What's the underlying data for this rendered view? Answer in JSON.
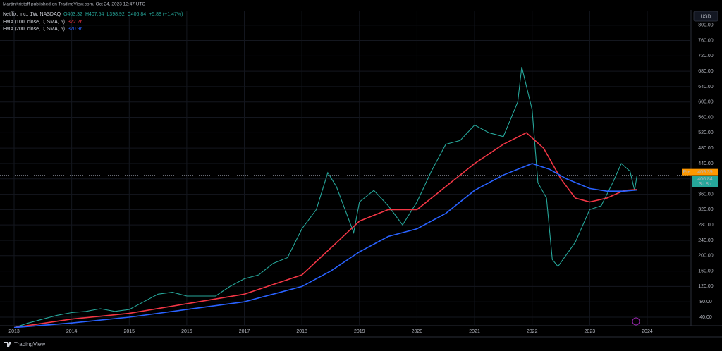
{
  "published": "MartinKristoff published on TradingView.com, Oct 24, 2023 12:47 UTC",
  "currency": "USD",
  "footer": "TradingView",
  "chart_data": {
    "type": "line",
    "symbol": "Netflix, Inc., 1W, NASDAQ",
    "ohlc_texts": [
      "O403.32",
      "H407.54",
      "L398.92",
      "C406.84",
      "+5.88 (+1.47%)"
    ],
    "xlim": [
      2012.755,
      2024.76
    ],
    "xticks": [
      2013,
      2014,
      2015,
      2016,
      2017,
      2018,
      2019,
      2020,
      2021,
      2022,
      2023,
      2024
    ],
    "ylim": [
      18,
      838
    ],
    "yticks": [
      {
        "value": 40,
        "label": "40.00"
      },
      {
        "value": 80,
        "label": "80.00"
      },
      {
        "value": 120,
        "label": "120.00"
      },
      {
        "value": 160,
        "label": "160.00"
      },
      {
        "value": 200,
        "label": "200.00"
      },
      {
        "value": 240,
        "label": "240.00"
      },
      {
        "value": 280,
        "label": "280.00"
      },
      {
        "value": 320,
        "label": "320.00"
      },
      {
        "value": 360,
        "label": "360.00"
      },
      {
        "value": 400,
        "label": "400.00"
      },
      {
        "value": 440,
        "label": "440.00"
      },
      {
        "value": 480,
        "label": "480.00"
      },
      {
        "value": 520,
        "label": "520.00"
      },
      {
        "value": 560,
        "label": "560.00"
      },
      {
        "value": 600,
        "label": "600.00"
      },
      {
        "value": 640,
        "label": "640.00"
      },
      {
        "value": 680,
        "label": "680.00"
      },
      {
        "value": 720,
        "label": "720.00"
      },
      {
        "value": 760,
        "label": "760.00"
      },
      {
        "value": 800,
        "label": "800.00"
      }
    ],
    "grid": true,
    "pre_market": {
      "label": "Pre",
      "value": 409.39
    },
    "last_close": 406.84,
    "countdown": "3d 8h",
    "series": [
      {
        "name": "Price",
        "color": "#26a69a",
        "legend": false,
        "x": [
          2013.0,
          2013.25,
          2013.5,
          2013.75,
          2014.0,
          2014.25,
          2014.5,
          2014.75,
          2015.0,
          2015.25,
          2015.5,
          2015.75,
          2016.0,
          2016.25,
          2016.5,
          2016.75,
          2017.0,
          2017.25,
          2017.5,
          2017.75,
          2018.0,
          2018.25,
          2018.45,
          2018.6,
          2018.75,
          2018.9,
          2019.0,
          2019.25,
          2019.5,
          2019.75,
          2020.0,
          2020.25,
          2020.5,
          2020.75,
          2021.0,
          2021.25,
          2021.5,
          2021.75,
          2021.82,
          2022.0,
          2022.1,
          2022.25,
          2022.35,
          2022.45,
          2022.75,
          2023.0,
          2023.2,
          2023.4,
          2023.55,
          2023.7,
          2023.78,
          2023.82
        ],
        "values": [
          13,
          25,
          35,
          45,
          52,
          55,
          62,
          55,
          60,
          80,
          100,
          105,
          95,
          95,
          95,
          120,
          140,
          150,
          180,
          195,
          270,
          320,
          416,
          380,
          320,
          260,
          340,
          370,
          330,
          280,
          340,
          420,
          490,
          500,
          540,
          520,
          510,
          600,
          691,
          580,
          390,
          350,
          190,
          172,
          235,
          320,
          330,
          390,
          440,
          420,
          370,
          406.84
        ]
      },
      {
        "name": "EMA (100, close, 0, SMA, 5)",
        "last": 372.26,
        "color": "#f23645",
        "x": [
          2013.0,
          2014.0,
          2015.0,
          2016.0,
          2017.0,
          2018.0,
          2018.5,
          2019.0,
          2019.5,
          2020.0,
          2020.5,
          2021.0,
          2021.5,
          2021.9,
          2022.2,
          2022.5,
          2022.75,
          2023.0,
          2023.3,
          2023.6,
          2023.82
        ],
        "values": [
          13,
          35,
          50,
          75,
          100,
          150,
          220,
          290,
          320,
          320,
          380,
          440,
          490,
          520,
          480,
          400,
          350,
          340,
          350,
          370,
          372.26
        ]
      },
      {
        "name": "EMA (200, close, 0, SMA, 5)",
        "last": 370.96,
        "color": "#2962ff",
        "x": [
          2013.0,
          2014.0,
          2015.0,
          2016.0,
          2017.0,
          2018.0,
          2018.5,
          2019.0,
          2019.5,
          2020.0,
          2020.5,
          2021.0,
          2021.5,
          2022.0,
          2022.3,
          2022.6,
          2023.0,
          2023.3,
          2023.6,
          2023.82
        ],
        "values": [
          13,
          25,
          40,
          60,
          80,
          120,
          160,
          210,
          250,
          270,
          310,
          370,
          410,
          440,
          425,
          400,
          375,
          368,
          368,
          370.96
        ]
      }
    ]
  }
}
